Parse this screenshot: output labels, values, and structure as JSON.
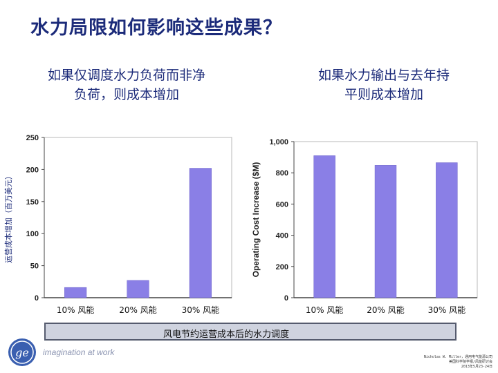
{
  "title": "水力局限如何影响这些成果？",
  "subtitles": {
    "left": [
      "如果仅调度水力负荷而非净",
      "负荷，则成本增加"
    ],
    "right": [
      "如果水力输出与去年持",
      "平则成本增加"
    ]
  },
  "chart_data": [
    {
      "type": "bar",
      "categories": [
        "10% 风能",
        "20% 风能",
        "30% 风能"
      ],
      "values": [
        16,
        27,
        202
      ],
      "ylim": [
        0,
        250
      ],
      "yticks": [
        0,
        50,
        100,
        150,
        200,
        250
      ],
      "ytick_labels": [
        "0",
        "50",
        "100",
        "150",
        "200",
        "250"
      ],
      "ylabel": "运营成本增加（百万美元）",
      "xlabel": "",
      "grid": false
    },
    {
      "type": "bar",
      "categories": [
        "10% 风能",
        "20% 风能",
        "30% 风能"
      ],
      "values": [
        910,
        848,
        865
      ],
      "ylim": [
        0,
        1000
      ],
      "yticks": [
        0,
        200,
        400,
        600,
        800,
        1000
      ],
      "ytick_labels": [
        "0",
        "200",
        "400",
        "600",
        "800",
        "1,000"
      ],
      "ylabel": "Operating Cost Increase ($M)",
      "xlabel": "",
      "grid": false
    }
  ],
  "bar_color": "#8a7fe6",
  "bottom_caption": "风电节约运营成本后的水力调度",
  "tagline": "imagination at work",
  "footer_lines": [
    "Nicholas W. Miller，通用电气能源公司",
    "美国科学院学报/风能研讨会",
    "2013年5月23-24日"
  ],
  "logo": "ge-monogram"
}
